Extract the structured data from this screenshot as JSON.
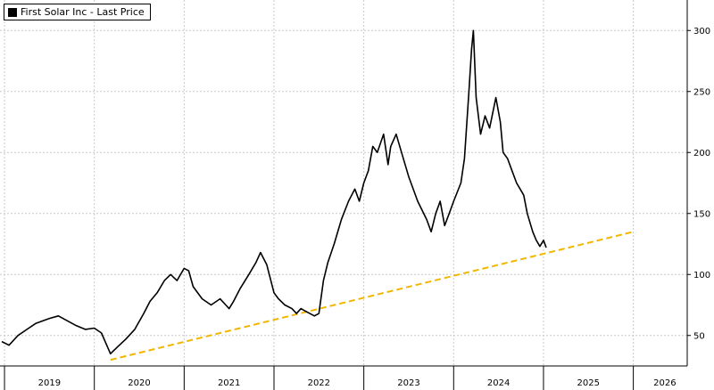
{
  "chart_data": {
    "type": "line",
    "legend": {
      "label": "First Solar Inc - Last Price",
      "position": "top-left"
    },
    "colors": {
      "price": "#000000",
      "trendline": "#f2b600",
      "grid": "#c9c9c9"
    },
    "y_axis": {
      "position": "right",
      "ylim": [
        25,
        325
      ],
      "ticks": [
        50,
        100,
        150,
        200,
        250,
        300
      ]
    },
    "x_axis": {
      "xlim": [
        2018.95,
        2026.6
      ],
      "separators": [
        2019.0,
        2020.0,
        2021.0,
        2022.0,
        2023.0,
        2024.0,
        2025.0,
        2026.0
      ],
      "labels": [
        {
          "text": "2019",
          "x": 2019.5
        },
        {
          "text": "2020",
          "x": 2020.5
        },
        {
          "text": "2021",
          "x": 2021.5
        },
        {
          "text": "2022",
          "x": 2022.5
        },
        {
          "text": "2023",
          "x": 2023.5
        },
        {
          "text": "2024",
          "x": 2024.5
        },
        {
          "text": "2025",
          "x": 2025.5
        },
        {
          "text": "2026",
          "x": 2026.35
        }
      ]
    },
    "grid": true,
    "series": [
      {
        "name": "First Solar Inc - Last Price",
        "points": [
          [
            2018.97,
            45
          ],
          [
            2019.05,
            42
          ],
          [
            2019.15,
            50
          ],
          [
            2019.25,
            55
          ],
          [
            2019.35,
            60
          ],
          [
            2019.5,
            64
          ],
          [
            2019.6,
            66
          ],
          [
            2019.7,
            62
          ],
          [
            2019.8,
            58
          ],
          [
            2019.9,
            55
          ],
          [
            2020.0,
            56
          ],
          [
            2020.08,
            52
          ],
          [
            2020.12,
            45
          ],
          [
            2020.18,
            35
          ],
          [
            2020.25,
            40
          ],
          [
            2020.35,
            47
          ],
          [
            2020.45,
            55
          ],
          [
            2020.55,
            68
          ],
          [
            2020.62,
            78
          ],
          [
            2020.7,
            85
          ],
          [
            2020.78,
            95
          ],
          [
            2020.85,
            100
          ],
          [
            2020.92,
            95
          ],
          [
            2021.0,
            105
          ],
          [
            2021.05,
            103
          ],
          [
            2021.1,
            90
          ],
          [
            2021.2,
            80
          ],
          [
            2021.3,
            75
          ],
          [
            2021.4,
            80
          ],
          [
            2021.5,
            72
          ],
          [
            2021.55,
            78
          ],
          [
            2021.62,
            88
          ],
          [
            2021.72,
            100
          ],
          [
            2021.8,
            110
          ],
          [
            2021.85,
            118
          ],
          [
            2021.92,
            108
          ],
          [
            2022.0,
            85
          ],
          [
            2022.05,
            80
          ],
          [
            2022.12,
            75
          ],
          [
            2022.2,
            72
          ],
          [
            2022.25,
            68
          ],
          [
            2022.3,
            72
          ],
          [
            2022.35,
            70
          ],
          [
            2022.45,
            66
          ],
          [
            2022.5,
            68
          ],
          [
            2022.55,
            95
          ],
          [
            2022.6,
            110
          ],
          [
            2022.67,
            125
          ],
          [
            2022.75,
            145
          ],
          [
            2022.83,
            160
          ],
          [
            2022.9,
            170
          ],
          [
            2022.95,
            160
          ],
          [
            2023.0,
            175
          ],
          [
            2023.05,
            185
          ],
          [
            2023.1,
            205
          ],
          [
            2023.15,
            200
          ],
          [
            2023.22,
            215
          ],
          [
            2023.27,
            190
          ],
          [
            2023.3,
            205
          ],
          [
            2023.36,
            215
          ],
          [
            2023.42,
            200
          ],
          [
            2023.5,
            180
          ],
          [
            2023.6,
            160
          ],
          [
            2023.7,
            145
          ],
          [
            2023.75,
            135
          ],
          [
            2023.8,
            150
          ],
          [
            2023.85,
            160
          ],
          [
            2023.9,
            140
          ],
          [
            2023.95,
            150
          ],
          [
            2024.0,
            160
          ],
          [
            2024.08,
            175
          ],
          [
            2024.12,
            195
          ],
          [
            2024.17,
            250
          ],
          [
            2024.2,
            285
          ],
          [
            2024.22,
            300
          ],
          [
            2024.25,
            245
          ],
          [
            2024.3,
            215
          ],
          [
            2024.35,
            230
          ],
          [
            2024.4,
            220
          ],
          [
            2024.47,
            245
          ],
          [
            2024.52,
            225
          ],
          [
            2024.55,
            200
          ],
          [
            2024.6,
            195
          ],
          [
            2024.65,
            185
          ],
          [
            2024.7,
            175
          ],
          [
            2024.78,
            165
          ],
          [
            2024.82,
            150
          ],
          [
            2024.88,
            135
          ],
          [
            2024.92,
            128
          ],
          [
            2024.96,
            123
          ],
          [
            2025.0,
            128
          ],
          [
            2025.03,
            122
          ]
        ]
      }
    ],
    "trendline": {
      "points": [
        [
          2020.18,
          30
        ],
        [
          2026.0,
          135
        ]
      ]
    }
  }
}
